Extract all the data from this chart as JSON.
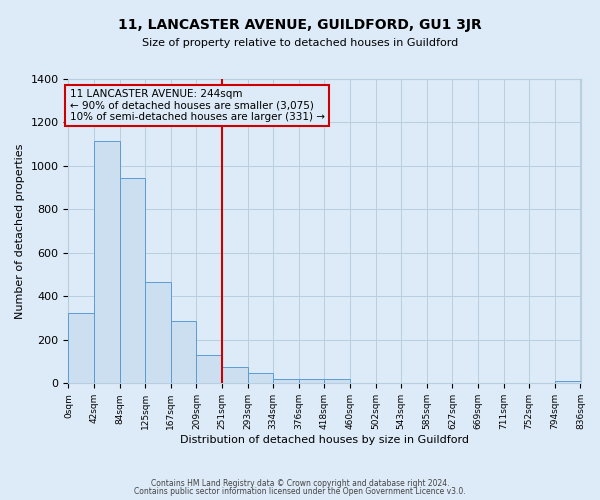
{
  "title": "11, LANCASTER AVENUE, GUILDFORD, GU1 3JR",
  "subtitle": "Size of property relative to detached houses in Guildford",
  "xlabel": "Distribution of detached houses by size in Guildford",
  "ylabel": "Number of detached properties",
  "footnote1": "Contains HM Land Registry data © Crown copyright and database right 2024.",
  "footnote2": "Contains public sector information licensed under the Open Government Licence v3.0.",
  "bar_color": "#ccdff0",
  "bar_edge_color": "#5b9bd5",
  "background_color": "#ddeaf7",
  "grid_color": "#b8cfe0",
  "vline_x": 251,
  "vline_color": "#cc0000",
  "annotation_box_color": "#cc0000",
  "annotation_text": "11 LANCASTER AVENUE: 244sqm\n← 90% of detached houses are smaller (3,075)\n10% of semi-detached houses are larger (331) →",
  "annotation_fontsize": 7.5,
  "bin_edges": [
    0,
    42,
    84,
    125,
    167,
    209,
    251,
    293,
    334,
    376,
    418,
    460,
    502,
    543,
    585,
    627,
    669,
    711,
    752,
    794,
    836
  ],
  "bin_counts": [
    325,
    1115,
    945,
    465,
    285,
    130,
    73,
    47,
    20,
    20,
    20,
    0,
    0,
    0,
    0,
    0,
    0,
    0,
    0,
    10
  ],
  "ylim": [
    0,
    1400
  ],
  "yticks": [
    0,
    200,
    400,
    600,
    800,
    1000,
    1200,
    1400
  ]
}
